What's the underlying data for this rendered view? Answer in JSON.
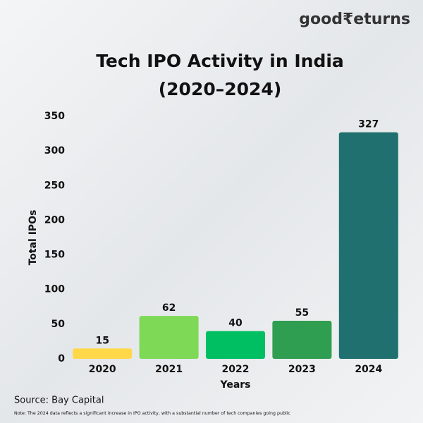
{
  "chart_data": {
    "type": "bar",
    "brand": "good₹eturns",
    "title": "Tech IPO Activity in India",
    "subtitle": "(2020–2024)",
    "y_label": "Total IPOs",
    "x_label": "Years",
    "categories": [
      "2020",
      "2021",
      "2022",
      "2023",
      "2024"
    ],
    "values": [
      15,
      62,
      40,
      55,
      327
    ],
    "colors": [
      "#ffd84a",
      "#7ed957",
      "#00bf63",
      "#2f9e50",
      "#1f706e"
    ],
    "ylim": [
      0,
      350
    ],
    "yticks": [
      0,
      50,
      100,
      150,
      200,
      250,
      300,
      350
    ],
    "grid": false,
    "source": "Source: Bay Capital",
    "note": "Note: The 2024 data reflects a significant increase in IPO activity, with a substantial number of tech companies going public"
  }
}
